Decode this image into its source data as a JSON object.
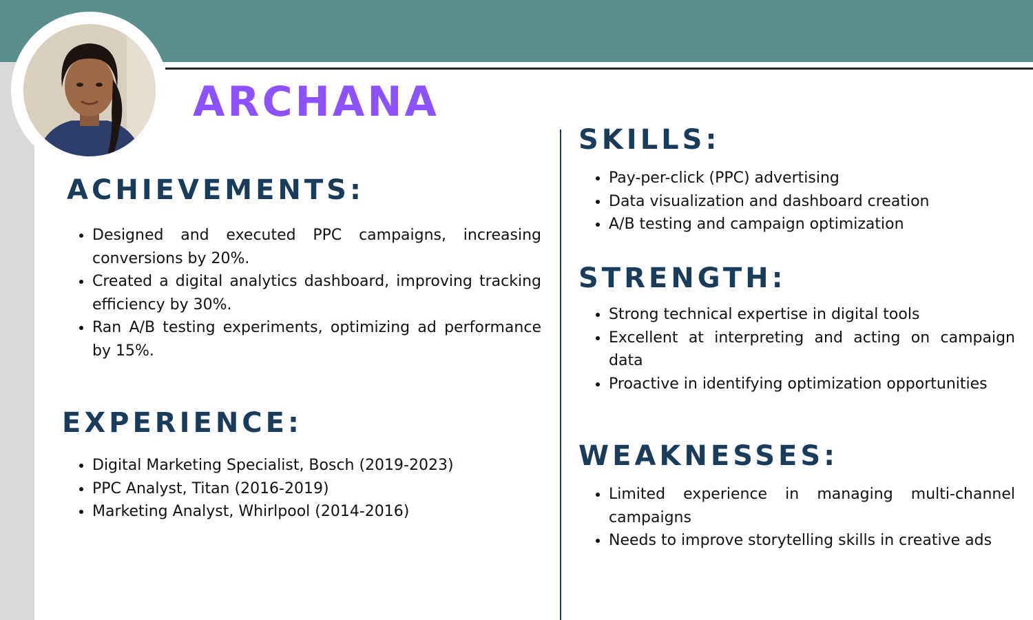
{
  "profile": {
    "name": "ARCHANA"
  },
  "colors": {
    "header_band": "#5a8e8d",
    "name": "#8c52ff",
    "heading": "#1b3b5a",
    "left_strip": "#d9d9d9"
  },
  "achievements": {
    "heading": "ACHIEVEMENTS:",
    "items": [
      "Designed and executed PPC campaigns, increasing conversions by 20%.",
      "Created a digital analytics dashboard, improving tracking efficiency by 30%.",
      "Ran A/B testing experiments, optimizing ad performance by 15%."
    ]
  },
  "experience": {
    "heading": "EXPERIENCE:",
    "items": [
      "Digital Marketing Specialist, Bosch (2019-2023)",
      "PPC Analyst, Titan (2016-2019)",
      "Marketing Analyst, Whirlpool (2014-2016)"
    ]
  },
  "skills": {
    "heading": "SKILLS:",
    "items": [
      "Pay-per-click (PPC) advertising",
      "Data visualization and dashboard creation",
      "A/B testing and campaign optimization"
    ]
  },
  "strength": {
    "heading": "STRENGTH:",
    "items": [
      "Strong technical expertise in digital tools",
      "Excellent at interpreting and acting on campaign data",
      "Proactive in identifying optimization opportunities"
    ]
  },
  "weaknesses": {
    "heading": "WEAKNESSES:",
    "items": [
      "Limited experience in managing multi-channel campaigns",
      "Needs to improve storytelling skills in creative ads"
    ]
  }
}
